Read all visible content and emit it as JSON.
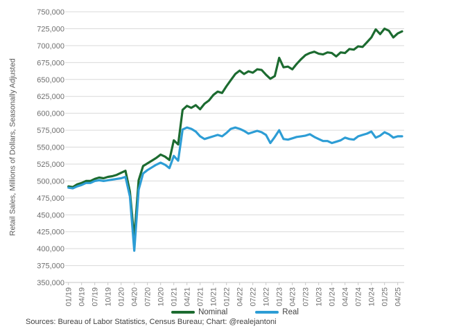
{
  "chart": {
    "y_axis_title": "Retail Sales, Millions of Dollars, Seasonally Adjusted"
  },
  "footer": {
    "source": "Sources: Bureau of Labor Statistics, Census Bureau; Chart: @realejantoni"
  },
  "chart_data": {
    "type": "line",
    "title": "",
    "xlabel": "",
    "ylabel": "Retail Sales, Millions of Dollars, Seasonally Adjusted",
    "grid": "horizontal",
    "legend_position": "bottom",
    "y_axis": {
      "min": 350000,
      "max": 750000,
      "step": 25000
    },
    "y_tick_labels": [
      "350,000",
      "375,000",
      "400,000",
      "425,000",
      "450,000",
      "475,000",
      "500,000",
      "525,000",
      "550,000",
      "575,000",
      "600,000",
      "625,000",
      "650,000",
      "675,000",
      "700,000",
      "725,000",
      "750,000"
    ],
    "x_tick_labels": [
      "01/19",
      "04/19",
      "07/19",
      "10/19",
      "01/20",
      "04/20",
      "07/20",
      "10/20",
      "01/21",
      "04/21",
      "07/21",
      "10/21",
      "01/22",
      "04/22",
      "07/22",
      "10/22",
      "01/23",
      "04/23",
      "07/23",
      "10/23",
      "01/24",
      "04/24",
      "07/24",
      "10/24",
      "01/25",
      "04/25"
    ],
    "x": [
      "01/19",
      "02/19",
      "03/19",
      "04/19",
      "05/19",
      "06/19",
      "07/19",
      "08/19",
      "09/19",
      "10/19",
      "11/19",
      "12/19",
      "01/20",
      "02/20",
      "03/20",
      "04/20",
      "05/20",
      "06/20",
      "07/20",
      "08/20",
      "09/20",
      "10/20",
      "11/20",
      "12/20",
      "01/21",
      "02/21",
      "03/21",
      "04/21",
      "05/21",
      "06/21",
      "07/21",
      "08/21",
      "09/21",
      "10/21",
      "11/21",
      "12/21",
      "01/22",
      "02/22",
      "03/22",
      "04/22",
      "05/22",
      "06/22",
      "07/22",
      "08/22",
      "09/22",
      "10/22",
      "11/22",
      "12/22",
      "01/23",
      "02/23",
      "03/23",
      "04/23",
      "05/23",
      "06/23",
      "07/23",
      "08/23",
      "09/23",
      "10/23",
      "11/23",
      "12/23",
      "01/24",
      "02/24",
      "03/24",
      "04/24",
      "05/24",
      "06/24",
      "07/24",
      "08/24",
      "09/24",
      "10/24",
      "11/24",
      "12/24",
      "01/25",
      "02/25",
      "03/25",
      "04/25",
      "05/25"
    ],
    "series": [
      {
        "name": "Nominal",
        "color": "#1c6b30",
        "values": [
          492000,
          491000,
          495000,
          497000,
          500000,
          500000,
          503000,
          505000,
          504000,
          506000,
          507000,
          509000,
          512000,
          515000,
          484000,
          415000,
          501000,
          522000,
          526000,
          530000,
          534000,
          539000,
          536000,
          531000,
          560000,
          554000,
          605000,
          611000,
          608000,
          612000,
          606000,
          614000,
          619000,
          627000,
          632000,
          630000,
          640000,
          649000,
          658000,
          663000,
          658000,
          662000,
          660000,
          665000,
          664000,
          657000,
          651000,
          655000,
          682000,
          668000,
          669000,
          665000,
          673000,
          680000,
          686000,
          689000,
          691000,
          688000,
          687000,
          690000,
          689000,
          684000,
          690000,
          689000,
          695000,
          694000,
          699000,
          698000,
          705000,
          712000,
          724000,
          717000,
          725000,
          722000,
          712000,
          718000,
          721000
        ]
      },
      {
        "name": "Real",
        "color": "#2d9dd5",
        "values": [
          490000,
          489000,
          492000,
          494000,
          497000,
          497000,
          500000,
          501000,
          500000,
          501000,
          502000,
          503000,
          504000,
          506000,
          477000,
          397000,
          487000,
          511000,
          516000,
          520000,
          524000,
          527000,
          524000,
          519000,
          537000,
          530000,
          576000,
          579000,
          577000,
          573000,
          566000,
          562000,
          564000,
          566000,
          568000,
          566000,
          571000,
          577000,
          579000,
          577000,
          574000,
          570000,
          572000,
          574000,
          572000,
          568000,
          556000,
          565000,
          575000,
          562000,
          561000,
          563000,
          565000,
          566000,
          567000,
          569000,
          565000,
          562000,
          559000,
          559000,
          556000,
          558000,
          560000,
          564000,
          562000,
          561000,
          566000,
          568000,
          570000,
          573000,
          564000,
          567000,
          572000,
          569000,
          564000,
          566000,
          566000
        ]
      }
    ]
  }
}
